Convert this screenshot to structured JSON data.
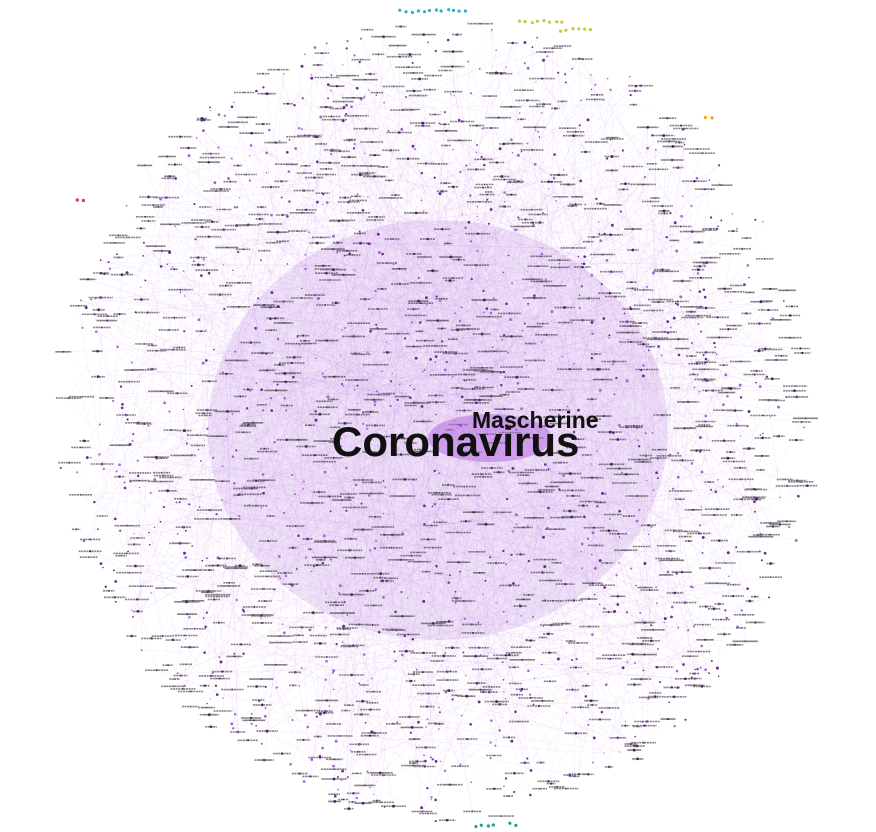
{
  "graph": {
    "hub_labels": [
      "Coronavirus",
      "Mascherine"
    ],
    "colors": {
      "background": "#ffffff",
      "cluster": "#a865d6",
      "edge": "#c98ce6",
      "node_dark": "#6a2c91",
      "label": "#222222",
      "outlier_cyan": "#2bb3c8",
      "outlier_yellow": "#c8c83a",
      "outlier_orange": "#f0a020",
      "outlier_red": "#e03050",
      "outlier_teal": "#20a090"
    }
  }
}
